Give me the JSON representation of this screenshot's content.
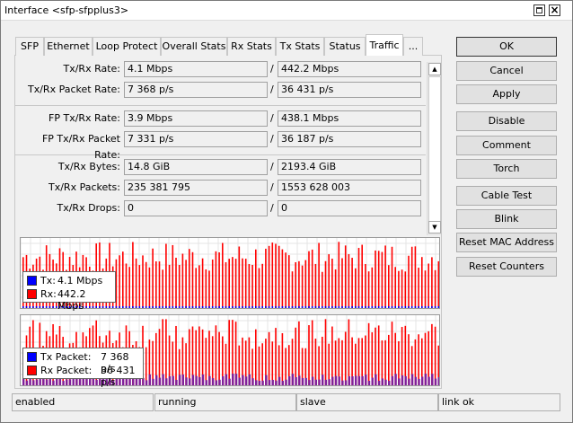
{
  "window": {
    "title": "Interface <sfp-sfpplus3>"
  },
  "tabs": [
    "SFP",
    "Ethernet",
    "Loop Protect",
    "Overall Stats",
    "Rx Stats",
    "Tx Stats",
    "Status",
    "Traffic",
    "..."
  ],
  "fields": [
    {
      "label": "Tx/Rx Rate:",
      "values": [
        "4.1 Mbps",
        "442.2 Mbps"
      ]
    },
    {
      "label": "Tx/Rx Packet Rate:",
      "values": [
        "7 368 p/s",
        "36 431 p/s"
      ]
    },
    {
      "label": "FP Tx/Rx Rate:",
      "values": [
        "3.9 Mbps",
        "438.1 Mbps"
      ]
    },
    {
      "label": "FP Tx/Rx Packet Rate:",
      "values": [
        "7 331 p/s",
        "36 187 p/s"
      ]
    },
    {
      "label": "Tx/Rx Bytes:",
      "values": [
        "14.8 GiB",
        "2193.4 GiB"
      ]
    },
    {
      "label": "Tx/Rx Packets:",
      "values": [
        "235 381 795",
        "1553 628 003"
      ]
    },
    {
      "label": "Tx/Rx Drops:",
      "values": [
        "0",
        "0"
      ]
    }
  ],
  "separator": "/",
  "graphs": [
    {
      "legend": [
        {
          "label": "Tx:",
          "value": "4.1 Mbps",
          "color": "#0000ff"
        },
        {
          "label": "Rx:",
          "value": "442.2 Mbps",
          "color": "#ff0000"
        }
      ]
    },
    {
      "legend": [
        {
          "label": "Tx Packet:",
          "value": "7 368 p/s",
          "color": "#0000ff"
        },
        {
          "label": "Rx Packet:",
          "value": "36 431 p/s",
          "color": "#ff0000"
        }
      ]
    }
  ],
  "buttons": [
    "OK",
    "Cancel",
    "Apply",
    "Disable",
    "Comment",
    "Torch",
    "Cable Test",
    "Blink",
    "Reset MAC Address",
    "Reset Counters"
  ],
  "status": [
    "enabled",
    "running",
    "slave",
    "link ok"
  ]
}
